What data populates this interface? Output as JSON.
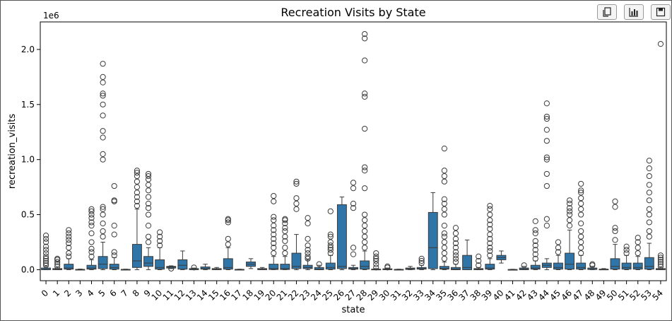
{
  "toolbar": {
    "copy_icon": "copy-icon",
    "chart_icon": "bar-chart-icon",
    "save_icon": "save-icon"
  },
  "colors": {
    "box": "#2f75a8",
    "edge": "#3a3a3a",
    "axis": "#000000"
  },
  "chart_data": {
    "type": "box",
    "title": "Recreation Visits by State",
    "xlabel": "state",
    "ylabel": "recreation_visits",
    "y_offset_label": "1e6",
    "y_scale": 1000000,
    "ylim": [
      -0.1,
      2.25
    ],
    "yticks": [
      0.0,
      0.5,
      1.0,
      1.5,
      2.0
    ],
    "ytick_labels": [
      "0.0",
      "0.5",
      "1.0",
      "1.5",
      "2.0"
    ],
    "categories": [
      "0",
      "1",
      "2",
      "3",
      "4",
      "5",
      "6",
      "7",
      "8",
      "9",
      "10",
      "11",
      "12",
      "13",
      "14",
      "15",
      "16",
      "17",
      "18",
      "19",
      "20",
      "21",
      "22",
      "23",
      "24",
      "25",
      "26",
      "27",
      "28",
      "29",
      "30",
      "31",
      "32",
      "33",
      "34",
      "35",
      "36",
      "37",
      "38",
      "39",
      "40",
      "41",
      "42",
      "43",
      "44",
      "45",
      "46",
      "47",
      "48",
      "49",
      "50",
      "51",
      "52",
      "53",
      "54"
    ],
    "boxes": [
      {
        "q1": 0,
        "med": 0.003,
        "q3": 0.015,
        "wlo": 0,
        "whi": 0.03,
        "out": [
          0.04,
          0.06,
          0.08,
          0.1,
          0.12,
          0.15,
          0.18,
          0.21,
          0.25,
          0.28,
          0.31
        ]
      },
      {
        "q1": 0,
        "med": 0.003,
        "q3": 0.01,
        "wlo": 0,
        "whi": 0.02,
        "out": [
          0.03,
          0.05,
          0.07,
          0.09,
          0.1
        ]
      },
      {
        "q1": 0.005,
        "med": 0.015,
        "q3": 0.05,
        "wlo": 0,
        "whi": 0.1,
        "out": [
          0.12,
          0.15,
          0.2,
          0.24,
          0.27,
          0.3,
          0.33,
          0.36
        ]
      },
      {
        "q1": 0,
        "med": 0.001,
        "q3": 0.003,
        "wlo": 0,
        "whi": 0.006,
        "out": []
      },
      {
        "q1": 0.005,
        "med": 0.015,
        "q3": 0.04,
        "wlo": 0,
        "whi": 0.09,
        "out": [
          0.12,
          0.16,
          0.19,
          0.25,
          0.33,
          0.4,
          0.43,
          0.47,
          0.5,
          0.53,
          0.55
        ]
      },
      {
        "q1": 0.01,
        "med": 0.05,
        "q3": 0.12,
        "wlo": 0,
        "whi": 0.25,
        "out": [
          0.3,
          0.35,
          0.42,
          0.5,
          0.55,
          0.57,
          1.0,
          1.05,
          1.2,
          1.26,
          1.4,
          1.5,
          1.58,
          1.6,
          1.7,
          1.75,
          1.87
        ]
      },
      {
        "q1": 0.005,
        "med": 0.02,
        "q3": 0.05,
        "wlo": 0,
        "whi": 0.11,
        "out": [
          0.13,
          0.16,
          0.32,
          0.4,
          0.62,
          0.63,
          0.76
        ]
      },
      {
        "q1": 0,
        "med": 0.001,
        "q3": 0.003,
        "wlo": 0,
        "whi": 0.005,
        "out": []
      },
      {
        "q1": 0.02,
        "med": 0.08,
        "q3": 0.23,
        "wlo": 0,
        "whi": 0.55,
        "out": [
          0.58,
          0.62,
          0.66,
          0.7,
          0.75,
          0.8,
          0.85,
          0.88,
          0.9
        ]
      },
      {
        "q1": 0.03,
        "med": 0.06,
        "q3": 0.12,
        "wlo": 0,
        "whi": 0.2,
        "out": [
          0.25,
          0.3,
          0.4,
          0.5,
          0.56,
          0.6,
          0.66,
          0.72,
          0.77,
          0.82,
          0.85,
          0.87
        ]
      },
      {
        "q1": 0.005,
        "med": 0.02,
        "q3": 0.09,
        "wlo": 0,
        "whi": 0.2,
        "out": [
          0.22,
          0.26,
          0.3,
          0.34
        ]
      },
      {
        "q1": 0.015,
        "med": 0.025,
        "q3": 0.03,
        "wlo": 0.01,
        "whi": 0.035,
        "out": [
          0.01
        ]
      },
      {
        "q1": 0.005,
        "med": 0.04,
        "q3": 0.09,
        "wlo": 0,
        "whi": 0.17,
        "out": []
      },
      {
        "q1": 0,
        "med": 0.002,
        "q3": 0.01,
        "wlo": 0,
        "whi": 0.015,
        "out": [
          0.02
        ]
      },
      {
        "q1": 0.005,
        "med": 0.01,
        "q3": 0.025,
        "wlo": 0,
        "whi": 0.05,
        "out": []
      },
      {
        "q1": 0,
        "med": 0.005,
        "q3": 0.01,
        "wlo": 0,
        "whi": 0.02,
        "out": []
      },
      {
        "q1": 0.005,
        "med": 0.02,
        "q3": 0.1,
        "wlo": 0,
        "whi": 0.2,
        "out": [
          0.23,
          0.28,
          0.43,
          0.45,
          0.46
        ]
      },
      {
        "q1": 0,
        "med": 0.001,
        "q3": 0.003,
        "wlo": 0,
        "whi": 0.005,
        "out": []
      },
      {
        "q1": 0.03,
        "med": 0.05,
        "q3": 0.07,
        "wlo": 0.01,
        "whi": 0.1,
        "out": []
      },
      {
        "q1": 0,
        "med": 0.003,
        "q3": 0.01,
        "wlo": 0,
        "whi": 0.02,
        "out": []
      },
      {
        "q1": 0.002,
        "med": 0.01,
        "q3": 0.05,
        "wlo": 0,
        "whi": 0.12,
        "out": [
          0.15,
          0.2,
          0.24,
          0.28,
          0.32,
          0.36,
          0.4,
          0.45,
          0.48,
          0.62,
          0.67
        ]
      },
      {
        "q1": 0.002,
        "med": 0.01,
        "q3": 0.05,
        "wlo": 0,
        "whi": 0.12,
        "out": [
          0.15,
          0.2,
          0.26,
          0.3,
          0.35,
          0.38,
          0.42,
          0.45,
          0.46
        ]
      },
      {
        "q1": 0.01,
        "med": 0.03,
        "q3": 0.15,
        "wlo": 0,
        "whi": 0.32,
        "out": [
          0.55,
          0.6,
          0.65,
          0.78,
          0.8
        ]
      },
      {
        "q1": 0.01,
        "med": 0.02,
        "q3": 0.04,
        "wlo": 0,
        "whi": 0.09,
        "out": [
          0.1,
          0.12,
          0.15,
          0.18,
          0.22,
          0.28,
          0.42,
          0.47
        ]
      },
      {
        "q1": 0,
        "med": 0.005,
        "q3": 0.02,
        "wlo": 0,
        "whi": 0.04,
        "out": [
          0.05
        ]
      },
      {
        "q1": 0.005,
        "med": 0.02,
        "q3": 0.06,
        "wlo": 0,
        "whi": 0.13,
        "out": [
          0.15,
          0.18,
          0.2,
          0.22,
          0.25,
          0.3,
          0.32,
          0.53
        ]
      },
      {
        "q1": 0.01,
        "med": 0.03,
        "q3": 0.59,
        "wlo": 0,
        "whi": 0.66,
        "out": []
      },
      {
        "q1": 0.005,
        "med": 0.01,
        "q3": 0.02,
        "wlo": 0,
        "whi": 0.04,
        "out": [
          0.14,
          0.2,
          0.56,
          0.6,
          0.74,
          0.79
        ]
      },
      {
        "q1": 0.005,
        "med": 0.03,
        "q3": 0.08,
        "wlo": 0,
        "whi": 0.17,
        "out": [
          0.2,
          0.25,
          0.3,
          0.35,
          0.4,
          0.45,
          0.5,
          0.74,
          0.9,
          0.93,
          1.28,
          1.57,
          1.6,
          1.9,
          2.1,
          2.14
        ]
      },
      {
        "q1": 0,
        "med": 0.002,
        "q3": 0.005,
        "wlo": 0,
        "whi": 0.01,
        "out": [
          0.02,
          0.05,
          0.08,
          0.1,
          0.12,
          0.15
        ]
      },
      {
        "q1": 0,
        "med": 0.002,
        "q3": 0.008,
        "wlo": 0,
        "whi": 0.015,
        "out": [
          0.02,
          0.03
        ]
      },
      {
        "q1": 0,
        "med": 0.001,
        "q3": 0.003,
        "wlo": 0,
        "whi": 0.005,
        "out": []
      },
      {
        "q1": 0.002,
        "med": 0.008,
        "q3": 0.015,
        "wlo": 0,
        "whi": 0.03,
        "out": []
      },
      {
        "q1": 0.005,
        "med": 0.01,
        "q3": 0.02,
        "wlo": 0,
        "whi": 0.04,
        "out": [
          0.06,
          0.08,
          0.1
        ]
      },
      {
        "q1": 0.01,
        "med": 0.2,
        "q3": 0.52,
        "wlo": 0,
        "whi": 0.7,
        "out": []
      },
      {
        "q1": 0.005,
        "med": 0.01,
        "q3": 0.03,
        "wlo": 0,
        "whi": 0.07,
        "out": [
          0.1,
          0.15,
          0.2,
          0.25,
          0.3,
          0.33,
          0.4,
          0.5,
          0.55,
          0.6,
          0.64,
          0.8,
          0.85,
          0.9,
          1.1
        ]
      },
      {
        "q1": 0,
        "med": 0.005,
        "q3": 0.02,
        "wlo": 0,
        "whi": 0.05,
        "out": [
          0.07,
          0.1,
          0.13,
          0.16,
          0.2,
          0.24,
          0.28,
          0.33,
          0.38
        ]
      },
      {
        "q1": 0,
        "med": 0.02,
        "q3": 0.13,
        "wlo": 0,
        "whi": 0.27,
        "out": []
      },
      {
        "q1": 0,
        "med": 0.003,
        "q3": 0.01,
        "wlo": 0,
        "whi": 0.02,
        "out": [
          0.04,
          0.08,
          0.12
        ]
      },
      {
        "q1": 0.005,
        "med": 0.015,
        "q3": 0.05,
        "wlo": 0,
        "whi": 0.1,
        "out": [
          0.13,
          0.17,
          0.2,
          0.24,
          0.28,
          0.32,
          0.37,
          0.41,
          0.45,
          0.5,
          0.55,
          0.58
        ]
      },
      {
        "q1": 0.09,
        "med": 0.11,
        "q3": 0.13,
        "wlo": 0.06,
        "whi": 0.17,
        "out": []
      },
      {
        "q1": 0,
        "med": 0.001,
        "q3": 0.002,
        "wlo": 0,
        "whi": 0.004,
        "out": []
      },
      {
        "q1": 0,
        "med": 0.005,
        "q3": 0.015,
        "wlo": 0,
        "whi": 0.03,
        "out": [
          0.04
        ]
      },
      {
        "q1": 0.005,
        "med": 0.015,
        "q3": 0.04,
        "wlo": 0,
        "whi": 0.08,
        "out": [
          0.1,
          0.14,
          0.18,
          0.22,
          0.26,
          0.33,
          0.36,
          0.44
        ]
      },
      {
        "q1": 0.02,
        "med": 0.04,
        "q3": 0.06,
        "wlo": 0,
        "whi": 0.1,
        "out": [
          0.4,
          0.46,
          0.76,
          0.87,
          1.0,
          1.02,
          1.17,
          1.27,
          1.37,
          1.39,
          1.51
        ]
      },
      {
        "q1": 0.005,
        "med": 0.02,
        "q3": 0.06,
        "wlo": 0,
        "whi": 0.13,
        "out": [
          0.16,
          0.2,
          0.25
        ]
      },
      {
        "q1": 0.005,
        "med": 0.05,
        "q3": 0.15,
        "wlo": 0,
        "whi": 0.36,
        "out": [
          0.4,
          0.45,
          0.5,
          0.53,
          0.56,
          0.6,
          0.63
        ]
      },
      {
        "q1": 0.005,
        "med": 0.02,
        "q3": 0.06,
        "wlo": 0,
        "whi": 0.13,
        "out": [
          0.15,
          0.2,
          0.25,
          0.3,
          0.35,
          0.42,
          0.5,
          0.55,
          0.6,
          0.65,
          0.7,
          0.72,
          0.78
        ]
      },
      {
        "q1": 0.002,
        "med": 0.005,
        "q3": 0.015,
        "wlo": 0,
        "whi": 0.03,
        "out": [
          0.04,
          0.05
        ]
      },
      {
        "q1": 0,
        "med": 0.002,
        "q3": 0.005,
        "wlo": 0,
        "whi": 0.01,
        "out": []
      },
      {
        "q1": 0.005,
        "med": 0.03,
        "q3": 0.1,
        "wlo": 0,
        "whi": 0.23,
        "out": [
          0.27,
          0.35,
          0.38,
          0.57,
          0.62
        ]
      },
      {
        "q1": 0.005,
        "med": 0.02,
        "q3": 0.06,
        "wlo": 0,
        "whi": 0.13,
        "out": [
          0.15,
          0.18,
          0.21
        ]
      },
      {
        "q1": 0.005,
        "med": 0.02,
        "q3": 0.06,
        "wlo": 0,
        "whi": 0.12,
        "out": [
          0.15,
          0.2,
          0.25,
          0.29
        ]
      },
      {
        "q1": 0.005,
        "med": 0.03,
        "q3": 0.11,
        "wlo": 0,
        "whi": 0.24,
        "out": [
          0.3,
          0.35,
          0.43,
          0.5,
          0.55,
          0.63,
          0.7,
          0.77,
          0.85,
          0.92,
          0.99
        ]
      },
      {
        "q1": 0,
        "med": 0.003,
        "q3": 0.01,
        "wlo": 0,
        "whi": 0.02,
        "out": [
          0.03,
          0.05,
          0.07,
          0.09,
          0.11,
          0.13,
          2.05
        ]
      }
    ]
  }
}
